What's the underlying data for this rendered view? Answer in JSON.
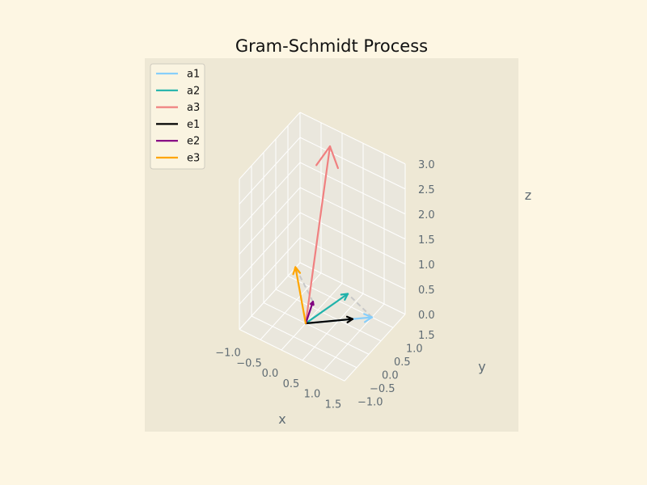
{
  "chart_data": {
    "type": "line",
    "projection": "3d",
    "title": "Gram-Schmidt Process",
    "xlabel": "x",
    "ylabel": "y",
    "zlabel": "z",
    "xlim": [
      -1.0,
      1.5
    ],
    "ylim": [
      -1.0,
      1.5
    ],
    "zlim": [
      0.0,
      3.0
    ],
    "xticks": [
      "−1.0",
      "−0.5",
      "0.0",
      "0.5",
      "1.0",
      "1.5"
    ],
    "yticks": [
      "−1.0",
      "−0.5",
      "0.0",
      "0.5",
      "1.0",
      "1.5"
    ],
    "zticks": [
      "0.0",
      "0.5",
      "1.0",
      "1.5",
      "2.0",
      "2.5",
      "3.0"
    ],
    "grid": true,
    "legend_position": "top-left",
    "series": [
      {
        "name": "a1",
        "color": "#87cefa",
        "vector": [
          1,
          1,
          0
        ]
      },
      {
        "name": "a2",
        "color": "#20b2aa",
        "vector": [
          1,
          0,
          1
        ]
      },
      {
        "name": "a3",
        "color": "#f08080",
        "vector": [
          0,
          1,
          3
        ]
      },
      {
        "name": "e1",
        "color": "#000000",
        "vector": [
          0.707,
          0.707,
          0
        ]
      },
      {
        "name": "e2",
        "color": "#800080",
        "vector": [
          0.408,
          -0.408,
          0.816
        ]
      },
      {
        "name": "e3",
        "color": "#ffa500",
        "vector": [
          -0.577,
          0.577,
          0.577
        ]
      }
    ],
    "projection_lines": [
      {
        "from": [
          1,
          1,
          0
        ],
        "to": [
          1,
          0,
          1
        ]
      },
      {
        "from": [
          0.408,
          -0.408,
          0.816
        ],
        "to": [
          -0.577,
          0.577,
          0.577
        ]
      }
    ],
    "colors": {
      "figure_background": "#fdf6e3",
      "axes_background": "#eee8d5",
      "pane": "#eae7dd",
      "grid": "#ffffff",
      "tick_text": "#5f6b73"
    }
  }
}
